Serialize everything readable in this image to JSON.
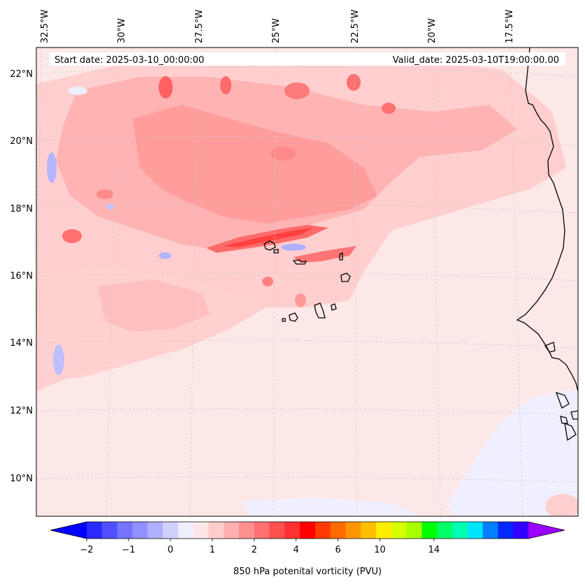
{
  "map": {
    "start_date": "Start date: 2025-03-10_00:00:00",
    "valid_date": "Valid_date: 2025-03-10T19:00:00.00",
    "longitude_labels": [
      "32.5°W",
      "30°W",
      "27.5°W",
      "25°W",
      "22.5°W",
      "20°W",
      "17.5°W"
    ],
    "latitude_labels": [
      "22°N",
      "20°N",
      "18°N",
      "16°N",
      "14°N",
      "12°N",
      "10°N"
    ],
    "region": "Cape Verde / West African coast",
    "colors": {
      "background_field": "#fde8e8",
      "coast": "#000000",
      "gridline": "#c8c8c8"
    }
  },
  "colorbar": {
    "label": "850 hPa potenital vorticity (PVU)",
    "tick_labels": [
      "−2",
      "−1",
      "0",
      "1",
      "2",
      "4",
      "6",
      "10",
      "14"
    ],
    "colors": [
      "#0000ff",
      "#2a2aff",
      "#5050ff",
      "#7474ff",
      "#9090ff",
      "#b0b0ff",
      "#d0d0ff",
      "#eeeeff",
      "#ffe6e6",
      "#ffcccc",
      "#ffb0b0",
      "#ff9090",
      "#ff7070",
      "#ff5050",
      "#ff3030",
      "#ff0000",
      "#ff3a00",
      "#ff6a00",
      "#ff9500",
      "#ffbf00",
      "#ffee00",
      "#d6ff00",
      "#a8ff00",
      "#00ff00",
      "#00ff66",
      "#00ffb0",
      "#00e5ff",
      "#0080ff",
      "#0028ff",
      "#3300ff",
      "#9900ff"
    ]
  }
}
